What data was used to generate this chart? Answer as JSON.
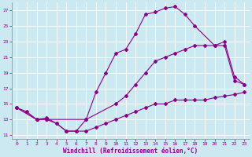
{
  "xlabel": "Windchill (Refroidissement éolien,°C)",
  "bg_color": "#cce8f0",
  "line_color": "#880088",
  "xlim": [
    -0.5,
    23.5
  ],
  "ylim": [
    10.5,
    28.0
  ],
  "xticks": [
    0,
    1,
    2,
    3,
    4,
    5,
    6,
    7,
    8,
    9,
    10,
    11,
    12,
    13,
    14,
    15,
    16,
    17,
    18,
    19,
    20,
    21,
    22,
    23
  ],
  "yticks": [
    11,
    13,
    15,
    17,
    19,
    21,
    23,
    25,
    27
  ],
  "line1_x": [
    0,
    1,
    2,
    3,
    4,
    5,
    6,
    7,
    8,
    9,
    10,
    11,
    12,
    13,
    14,
    15,
    16,
    17,
    18,
    20,
    21,
    22,
    23
  ],
  "line1_y": [
    14.5,
    14.0,
    13.0,
    13.2,
    12.5,
    11.5,
    11.5,
    13.0,
    16.5,
    19.0,
    21.5,
    22.0,
    24.0,
    26.5,
    26.8,
    27.3,
    27.5,
    26.5,
    25.0,
    22.5,
    22.5,
    18.0,
    17.5
  ],
  "line2_x": [
    0,
    2,
    3,
    7,
    10,
    11,
    12,
    13,
    14,
    15,
    16,
    17,
    18,
    19,
    20,
    21,
    22,
    23
  ],
  "line2_y": [
    14.5,
    13.0,
    13.0,
    13.0,
    15.0,
    16.0,
    17.5,
    19.0,
    20.5,
    21.0,
    21.5,
    22.0,
    22.5,
    22.5,
    22.5,
    23.0,
    18.5,
    17.5
  ],
  "line3_x": [
    0,
    2,
    3,
    4,
    5,
    6,
    7,
    8,
    9,
    10,
    11,
    12,
    13,
    14,
    15,
    16,
    17,
    18,
    19,
    20,
    21,
    22,
    23
  ],
  "line3_y": [
    14.5,
    13.0,
    13.0,
    12.5,
    11.5,
    11.5,
    11.5,
    12.0,
    12.5,
    13.0,
    13.5,
    14.0,
    14.5,
    15.0,
    15.0,
    15.5,
    15.5,
    15.5,
    15.5,
    15.8,
    16.0,
    16.2,
    16.5
  ]
}
